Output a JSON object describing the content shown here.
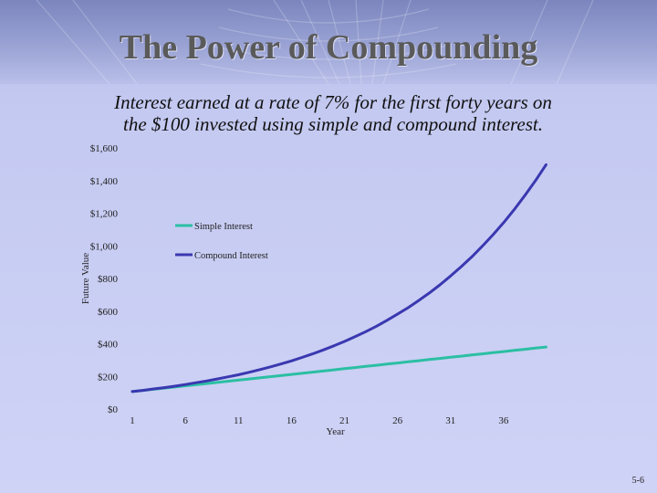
{
  "slide": {
    "title": "The Power of Compounding",
    "subtitle_line1": "Interest earned at a rate of 7% for the first forty years on",
    "subtitle_line2": "the $100 invested using simple and compound interest.",
    "slide_number": "5-6"
  },
  "colors": {
    "simple": "#2bbfa3",
    "compound": "#3a38b0"
  },
  "chart_data": {
    "type": "line",
    "title": "",
    "xlabel": "Year",
    "ylabel": "Future Value",
    "x_ticks": [
      "1",
      "6",
      "11",
      "16",
      "21",
      "26",
      "31",
      "36"
    ],
    "y_ticks": [
      "$0",
      "$200",
      "$400",
      "$600",
      "$800",
      "$1,000",
      "$1,200",
      "$1,400",
      "$1,600"
    ],
    "xlim": [
      1,
      41
    ],
    "ylim": [
      0,
      1600
    ],
    "legend_position": "upper-center",
    "x": [
      1,
      2,
      3,
      4,
      5,
      6,
      7,
      8,
      9,
      10,
      11,
      12,
      13,
      14,
      15,
      16,
      17,
      18,
      19,
      20,
      21,
      22,
      23,
      24,
      25,
      26,
      27,
      28,
      29,
      30,
      31,
      32,
      33,
      34,
      35,
      36,
      37,
      38,
      39,
      40
    ],
    "series": [
      {
        "name": "Simple Interest",
        "values": [
          107,
          114,
          121,
          128,
          135,
          142,
          149,
          156,
          163,
          170,
          177,
          184,
          191,
          198,
          205,
          212,
          219,
          226,
          233,
          240,
          247,
          254,
          261,
          268,
          275,
          282,
          289,
          296,
          303,
          310,
          317,
          324,
          331,
          338,
          345,
          352,
          359,
          366,
          373,
          380
        ]
      },
      {
        "name": "Compound Interest",
        "values": [
          107,
          114,
          123,
          131,
          140,
          150,
          161,
          172,
          184,
          197,
          210,
          225,
          241,
          258,
          276,
          295,
          316,
          338,
          362,
          387,
          414,
          443,
          474,
          507,
          543,
          581,
          621,
          665,
          711,
          761,
          815,
          872,
          932,
          998,
          1068,
          1142,
          1222,
          1308,
          1399,
          1497
        ]
      }
    ]
  }
}
